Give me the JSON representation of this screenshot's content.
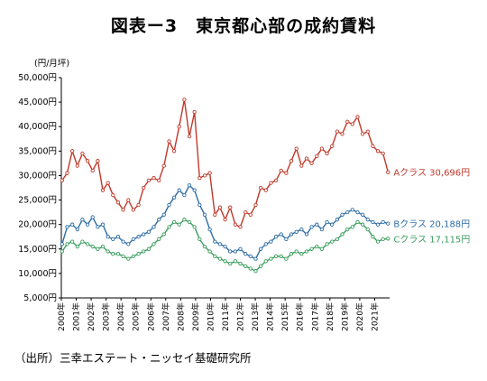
{
  "chart_data": {
    "type": "line",
    "title": "図表ー3　東京都心部の成約賃料",
    "ylabel": "(円/月坪)",
    "xlabel": "",
    "ylim": [
      5000,
      50000
    ],
    "y_ticks": [
      "5,000円",
      "10,000円",
      "15,000円",
      "20,000円",
      "25,000円",
      "30,000円",
      "35,000円",
      "40,000円",
      "45,000円",
      "50,000円"
    ],
    "x_ticks": [
      "2000年",
      "2001年",
      "2002年",
      "2003年",
      "2004年",
      "2005年",
      "2006年",
      "2007年",
      "2008年",
      "2009年",
      "2010年",
      "2011年",
      "2012年",
      "2013年",
      "2014年",
      "2015年",
      "2016年",
      "2017年",
      "2018年",
      "2019年",
      "2020年",
      "2021年"
    ],
    "x_start": 2000,
    "x_end": 2022,
    "grid": false,
    "legend": "end-labels",
    "series": [
      {
        "name": "Aクラス",
        "end_label": "Aクラス 30,696円",
        "color": "#c0392b",
        "values": [
          29000,
          30500,
          35000,
          32000,
          34500,
          33000,
          31000,
          33000,
          27000,
          28500,
          26000,
          24500,
          23000,
          25000,
          23000,
          24000,
          27500,
          29000,
          29500,
          29000,
          32000,
          37000,
          35000,
          40000,
          45500,
          38000,
          43000,
          29500,
          30000,
          30500,
          22000,
          23500,
          21000,
          23500,
          20000,
          19500,
          22500,
          22000,
          24000,
          27500,
          27000,
          28500,
          29000,
          31000,
          30500,
          33000,
          35500,
          32000,
          33500,
          32500,
          34000,
          35500,
          34500,
          36000,
          39000,
          38500,
          41000,
          40500,
          42000,
          38500,
          39000,
          36000,
          35000,
          34500,
          30696
        ]
      },
      {
        "name": "Bクラス",
        "end_label": "Bクラス 20,188円",
        "color": "#2e6da4",
        "values": [
          16000,
          19500,
          20000,
          19000,
          21000,
          20000,
          21500,
          19500,
          20000,
          17500,
          17000,
          17500,
          16500,
          16000,
          17000,
          17500,
          18000,
          18500,
          19500,
          21000,
          22000,
          24000,
          25500,
          27000,
          26000,
          28000,
          27000,
          24000,
          22000,
          19000,
          16500,
          16000,
          15500,
          14500,
          14500,
          15000,
          14000,
          13500,
          13000,
          15000,
          16000,
          16500,
          17500,
          18000,
          17000,
          18000,
          18500,
          19000,
          18000,
          19500,
          20000,
          19000,
          20500,
          20000,
          21000,
          22000,
          22500,
          23000,
          22500,
          22000,
          21000,
          20500,
          20000,
          20500,
          20188
        ]
      },
      {
        "name": "Cクラス",
        "end_label": "Cクラス 17,115円",
        "color": "#3a9d5d",
        "values": [
          14500,
          16000,
          16500,
          15500,
          16500,
          16000,
          15500,
          15000,
          15500,
          14500,
          14000,
          14000,
          13500,
          13000,
          13500,
          14000,
          14500,
          15000,
          16000,
          17000,
          18000,
          19500,
          20500,
          20000,
          21000,
          20500,
          19500,
          17000,
          15500,
          14500,
          13500,
          13000,
          12500,
          12000,
          12500,
          12000,
          11500,
          11000,
          10500,
          11500,
          12500,
          13000,
          13500,
          13500,
          13000,
          14000,
          14500,
          14000,
          14500,
          15000,
          15500,
          15000,
          16000,
          16500,
          17000,
          18000,
          19000,
          19500,
          20500,
          20000,
          19000,
          17500,
          16500,
          17000,
          17115
        ]
      }
    ]
  },
  "source": "（出所）三幸エステート・ニッセイ基礎研究所"
}
